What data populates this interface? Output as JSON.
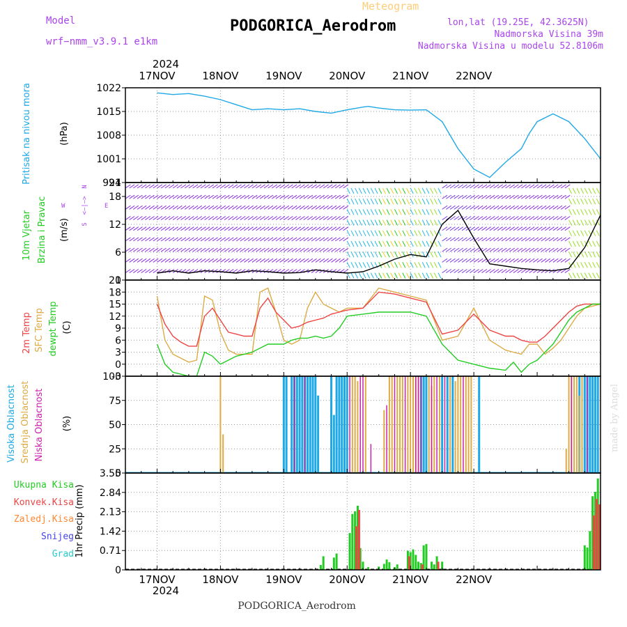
{
  "header": {
    "model_label": "Model",
    "model_name": "wrf−nmm_v3.9.1 e1km",
    "subtitle": "Meteogram",
    "station": "PODGORICA_Aerodrom",
    "coords": "lon,lat (19.25E, 42.3625N)",
    "elevation": "Nadmorska Visina 39m",
    "model_elevation": "Nadmorska Visina u modelu 52.8106m",
    "year_top": "2024",
    "year_bottom": "2024",
    "footer_station": "PODGORICA_Aerodrom",
    "credit": "made by Angel"
  },
  "colors": {
    "pressure": "#1ea8e6",
    "wind_label": "#22cc22",
    "t2m": "#ee4444",
    "sfc": "#ddaa44",
    "dewpt": "#22cc22",
    "cloud_high": "#1ea8e6",
    "cloud_mid": "#ddaa44",
    "cloud_low": "#cc22aa",
    "rain_total": "#22cc22",
    "rain_conv": "#ee4444",
    "rain_frozen": "#ff8833",
    "snow": "#4444ee",
    "hail": "#22cccc",
    "purple": "#aa44ee",
    "grid": "#999999"
  },
  "chart_data": [
    {
      "type": "line",
      "panel": "pressure",
      "ylabel_main": "Pritisak na nivou mora",
      "ylabel_unit": "(hPa)",
      "x_ticks": [
        "17NOV",
        "18NOV",
        "19NOV",
        "20NOV",
        "21NOV",
        "22NOV"
      ],
      "y_ticks": [
        "1022",
        "1015",
        "1008",
        "1001",
        "994"
      ],
      "ylim": [
        994,
        1022
      ],
      "x_hours": [
        0,
        6,
        12,
        18,
        24,
        30,
        36,
        42,
        48,
        54,
        60,
        66,
        72,
        78,
        80,
        84,
        90,
        96,
        102,
        108,
        111,
        114,
        120,
        126,
        132,
        138,
        141,
        144,
        150,
        156,
        162,
        168
      ],
      "series": [
        {
          "values": [
            1020.5,
            1020,
            1020.3,
            1019.5,
            1018.5,
            1017,
            1015.5,
            1015.8,
            1015.5,
            1015.8,
            1015,
            1014.5,
            1015.5,
            1016.3,
            1016.5,
            1016,
            1015.5,
            1015.4,
            1015.5,
            1012,
            1008,
            1004,
            998,
            995.5,
            1000,
            1004,
            1008.5,
            1012,
            1014.3,
            1012,
            1007,
            1001
          ]
        }
      ]
    },
    {
      "type": "line",
      "panel": "wind",
      "ylabel_main": "10m Vjetar",
      "ylabel_sub": "Brzina i Pravac",
      "ylabel_unit": "(m/s)",
      "compass": {
        "n": "N",
        "w": "W",
        "e": "E",
        "s": "S",
        "arrows": "<—|—>"
      },
      "y_ticks": [
        "21",
        "18",
        "12",
        "6",
        "0"
      ],
      "ylim": [
        0,
        21
      ],
      "x_hours": [
        0,
        6,
        12,
        18,
        24,
        30,
        36,
        42,
        48,
        54,
        60,
        66,
        72,
        78,
        84,
        90,
        96,
        102,
        108,
        114,
        120,
        126,
        132,
        138,
        144,
        150,
        156,
        162,
        168
      ],
      "series": [
        {
          "name": "speed",
          "values": [
            1.5,
            2.0,
            1.5,
            2.0,
            1.8,
            1.5,
            2.0,
            1.8,
            1.5,
            1.6,
            2.2,
            1.8,
            1.5,
            1.8,
            3.0,
            4.5,
            5.5,
            5.0,
            12.0,
            15.0,
            9.0,
            3.5,
            3.0,
            2.5,
            2.2,
            2.0,
            2.5,
            7.0,
            14.0
          ]
        }
      ]
    },
    {
      "type": "line",
      "panel": "temperature",
      "ylabel_1": "2m Temp",
      "ylabel_2": "SFC Temp",
      "ylabel_3": "dewpt Temp",
      "ylabel_unit": "(C)",
      "y_ticks": [
        "21",
        "18",
        "15",
        "12",
        "9",
        "6",
        "3",
        "0",
        "-3"
      ],
      "ylim": [
        -3,
        21
      ],
      "x_hours": [
        0,
        3,
        6,
        9,
        12,
        15,
        18,
        21,
        24,
        27,
        30,
        33,
        36,
        39,
        42,
        45,
        48,
        51,
        54,
        57,
        60,
        63,
        66,
        69,
        72,
        78,
        84,
        90,
        96,
        102,
        108,
        114,
        120,
        126,
        132,
        135,
        138,
        141,
        144,
        147,
        150,
        153,
        156,
        159,
        162,
        165,
        168
      ],
      "series": [
        {
          "name": "2m Temp",
          "values": [
            15,
            10,
            7,
            5.5,
            4.5,
            4.5,
            12,
            14,
            11,
            8,
            7.5,
            7,
            7,
            14,
            16.5,
            13,
            11,
            9,
            9.5,
            10.5,
            11,
            11.5,
            12.5,
            13,
            13.5,
            14,
            18,
            17.5,
            16.5,
            15.5,
            7.5,
            8.5,
            12.5,
            8.5,
            7,
            7,
            6,
            5.5,
            5.5,
            7,
            9,
            11,
            13,
            14.5,
            15,
            15,
            15
          ]
        },
        {
          "name": "SFC Temp",
          "values": [
            17,
            6,
            2.5,
            1.5,
            0.5,
            1,
            17,
            16,
            8,
            3.5,
            2.5,
            2.5,
            2.5,
            18,
            19,
            13,
            6,
            5,
            6,
            14,
            18,
            15,
            14,
            13,
            14,
            14,
            19,
            18,
            17,
            16,
            6,
            7,
            14,
            6,
            3.5,
            3,
            2.5,
            5,
            5,
            2.5,
            4,
            6,
            9,
            12,
            14,
            14.5,
            15
          ]
        },
        {
          "name": "dewpt Temp",
          "values": [
            5,
            0,
            -2,
            -2.5,
            -3,
            -3,
            3,
            2,
            0,
            1,
            2,
            2.5,
            3,
            4,
            5,
            5,
            5,
            6,
            6.5,
            6.5,
            7,
            6.5,
            7,
            9,
            12,
            12.5,
            13,
            13,
            13,
            12,
            5,
            1,
            0,
            -1,
            -1.5,
            0.5,
            -2,
            0,
            1,
            3,
            5,
            8,
            11,
            13,
            14,
            15,
            15
          ]
        }
      ]
    },
    {
      "type": "bar",
      "panel": "clouds",
      "ylabel_1": "Visoka Oblacnost",
      "ylabel_2": "Srednja Oblacnost",
      "ylabel_3": "Niska Oblacnost",
      "ylabel_unit": "(%)",
      "y_ticks": [
        "100",
        "75",
        "50",
        "25",
        "0"
      ],
      "ylim": [
        0,
        100
      ],
      "series": [
        {
          "name": "Visoka",
          "x_hours": [
            48,
            49,
            51,
            52,
            53,
            54,
            55,
            56,
            57,
            58,
            59,
            60,
            61,
            66,
            67,
            68,
            69,
            70,
            71,
            72,
            100,
            101,
            102,
            108,
            110,
            112,
            122,
            160,
            162,
            163,
            164,
            165,
            166,
            167
          ],
          "values": [
            100,
            100,
            100,
            100,
            100,
            100,
            100,
            100,
            100,
            100,
            100,
            100,
            80,
            100,
            60,
            100,
            100,
            100,
            100,
            100,
            100,
            100,
            100,
            100,
            100,
            100,
            100,
            100,
            100,
            100,
            100,
            100,
            100,
            100
          ]
        },
        {
          "name": "Srednja",
          "x_hours": [
            24,
            25,
            74,
            75,
            76,
            79,
            86,
            88,
            89,
            91,
            92,
            93,
            95,
            96,
            97,
            98,
            99,
            103,
            104,
            105,
            107,
            111,
            113,
            114,
            115,
            117,
            118,
            119,
            155,
            156,
            157,
            158,
            159,
            160,
            161
          ],
          "values": [
            100,
            40,
            100,
            100,
            95,
            100,
            65,
            100,
            100,
            100,
            100,
            100,
            100,
            100,
            100,
            100,
            100,
            100,
            90,
            100,
            100,
            100,
            95,
            100,
            100,
            100,
            100,
            100,
            25,
            100,
            100,
            100,
            100,
            80,
            100
          ]
        },
        {
          "name": "Niska",
          "x_hours": [
            52,
            56,
            73,
            77,
            78,
            81,
            87,
            90,
            94,
            98,
            99,
            100,
            104,
            106,
            109,
            116,
            157,
            163
          ],
          "values": [
            100,
            100,
            100,
            100,
            100,
            30,
            70,
            100,
            100,
            100,
            100,
            100,
            100,
            100,
            100,
            100,
            100,
            100
          ]
        }
      ]
    },
    {
      "type": "bar",
      "panel": "precipitation",
      "legend": [
        "Ukupna Kisa",
        "Konvek.Kisa",
        "Zaledj.Kisa",
        "Snijeg",
        "Grad"
      ],
      "ylabel_main": "1hr Precip (mm)",
      "y_ticks": [
        "3.55",
        "2.84",
        "2.13",
        "1.42",
        "0.71",
        "0"
      ],
      "ylim": [
        0,
        3.55
      ],
      "x_tick_labels": [
        "17NOV",
        "18NOV",
        "19NOV",
        "20NOV",
        "21NOV",
        "22NOV"
      ],
      "series": [
        {
          "name": "Ukupna Kisa",
          "x_hours": [
            62,
            63,
            67,
            68,
            73,
            74,
            75,
            76,
            77,
            78,
            80,
            84,
            86,
            87,
            88,
            90,
            91,
            95,
            96,
            97,
            98,
            99,
            100,
            101,
            102,
            104,
            105,
            106,
            108,
            162,
            163,
            164,
            165,
            166,
            167
          ],
          "values": [
            0.18,
            0.5,
            0.45,
            0.6,
            1.35,
            2.05,
            2.15,
            2.35,
            0.8,
            0.3,
            0.1,
            0.12,
            0.22,
            0.38,
            0.28,
            0.1,
            0.2,
            0.7,
            0.65,
            0.75,
            0.55,
            0.3,
            0.25,
            0.9,
            0.95,
            0.3,
            0.2,
            0.5,
            0.3,
            0.9,
            0.82,
            1.42,
            2.7,
            2.86,
            3.35
          ]
        },
        {
          "name": "Konvek.Kisa",
          "x_hours": [
            75,
            76,
            95,
            100,
            106,
            165,
            166,
            167
          ],
          "values": [
            1.6,
            2.2,
            0.5,
            0.2,
            0.3,
            2.0,
            2.6,
            2.4
          ]
        }
      ]
    }
  ]
}
